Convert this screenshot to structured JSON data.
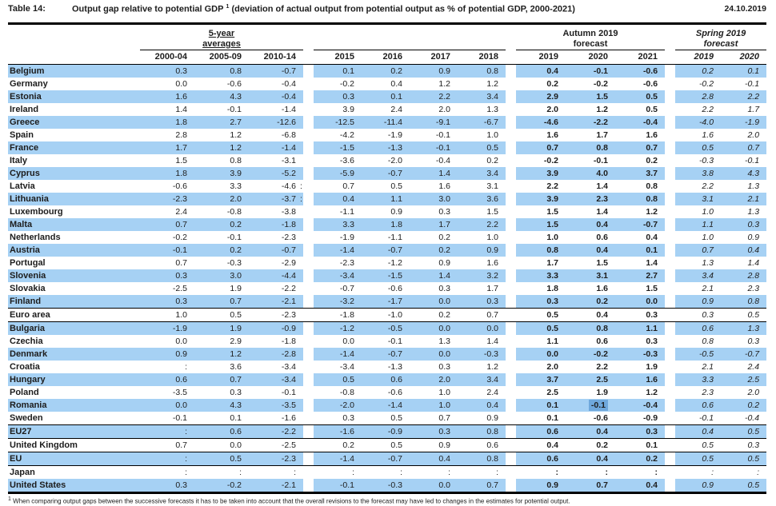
{
  "header": {
    "table_label": "Table 14:",
    "title_main": "Output gap relative to potential GDP",
    "title_superscript": "1",
    "title_paren": "(deviation of actual output from potential output as % of potential GDP, 2000-2021)",
    "date": "24.10.2019"
  },
  "table": {
    "groups": {
      "averages": {
        "line1": "5-year",
        "line2": "averages",
        "cols": [
          "2000-04",
          "2005-09",
          "2010-14"
        ]
      },
      "history": {
        "cols": [
          "2015",
          "2016",
          "2017",
          "2018"
        ]
      },
      "autumn": {
        "line1": "Autumn 2019",
        "line2": "forecast",
        "cols": [
          "2019",
          "2020",
          "2021"
        ]
      },
      "spring": {
        "line1": "Spring 2019",
        "line2": "forecast",
        "cols": [
          "2019",
          "2020"
        ]
      }
    },
    "colors": {
      "row_stripe": "#a6d1f4",
      "selection_highlight": "#6fa8dc",
      "border": "#000000"
    },
    "rows": [
      {
        "country": "Belgium",
        "values": [
          "0.3",
          "0.8",
          "-0.7",
          "0.1",
          "0.2",
          "0.9",
          "0.8",
          "0.4",
          "-0.1",
          "-0.6",
          "0.2",
          "0.1"
        ]
      },
      {
        "country": "Germany",
        "values": [
          "0.0",
          "-0.6",
          "-0.4",
          "-0.2",
          "0.4",
          "1.2",
          "1.2",
          "0.2",
          "-0.2",
          "-0.6",
          "-0.2",
          "-0.1"
        ]
      },
      {
        "country": "Estonia",
        "values": [
          "1.6",
          "4.3",
          "-0.4",
          "0.3",
          "0.1",
          "2.2",
          "3.4",
          "2.9",
          "1.5",
          "0.5",
          "2.8",
          "2.2"
        ]
      },
      {
        "country": "Ireland",
        "values": [
          "1.4",
          "-0.1",
          "-1.4",
          "3.9",
          "2.4",
          "2.0",
          "1.3",
          "2.0",
          "1.2",
          "0.5",
          "2.2",
          "1.7"
        ]
      },
      {
        "country": "Greece",
        "values": [
          "1.8",
          "2.7",
          "-12.6",
          "-12.5",
          "-11.4",
          "-9.1",
          "-6.7",
          "-4.6",
          "-2.2",
          "-0.4",
          "-4.0",
          "-1.9"
        ]
      },
      {
        "country": "Spain",
        "values": [
          "2.8",
          "1.2",
          "-6.8",
          "-4.2",
          "-1.9",
          "-0.1",
          "1.0",
          "1.6",
          "1.7",
          "1.6",
          "1.6",
          "2.0"
        ]
      },
      {
        "country": "France",
        "values": [
          "1.7",
          "1.2",
          "-1.4",
          "-1.5",
          "-1.3",
          "-0.1",
          "0.5",
          "0.7",
          "0.8",
          "0.7",
          "0.5",
          "0.7"
        ]
      },
      {
        "country": "Italy",
        "values": [
          "1.5",
          "0.8",
          "-3.1",
          "-3.6",
          "-2.0",
          "-0.4",
          "0.2",
          "-0.2",
          "-0.1",
          "0.2",
          "-0.3",
          "-0.1"
        ]
      },
      {
        "country": "Cyprus",
        "values": [
          "1.8",
          "3.9",
          "-5.2",
          "-5.9",
          "-0.7",
          "1.4",
          "3.4",
          "3.9",
          "4.0",
          "3.7",
          "3.8",
          "4.3"
        ]
      },
      {
        "country": "Latvia",
        "values": [
          "-0.6",
          "3.3",
          "-4.6",
          "0.7",
          "0.5",
          "1.6",
          "3.1",
          "2.2",
          "1.4",
          "0.8",
          "2.2",
          "1.3"
        ],
        "gap_marker": ":"
      },
      {
        "country": "Lithuania",
        "values": [
          "-2.3",
          "2.0",
          "-3.7",
          "0.4",
          "1.1",
          "3.0",
          "3.6",
          "3.9",
          "2.3",
          "0.8",
          "3.1",
          "2.1"
        ],
        "gap_marker": ":"
      },
      {
        "country": "Luxembourg",
        "values": [
          "2.4",
          "-0.8",
          "-3.8",
          "-1.1",
          "0.9",
          "0.3",
          "1.5",
          "1.5",
          "1.4",
          "1.2",
          "1.0",
          "1.3"
        ]
      },
      {
        "country": "Malta",
        "values": [
          "0.7",
          "0.2",
          "-1.8",
          "3.3",
          "1.8",
          "1.7",
          "2.2",
          "1.5",
          "0.4",
          "-0.7",
          "1.1",
          "0.3"
        ]
      },
      {
        "country": "Netherlands",
        "values": [
          "-0.2",
          "-0.1",
          "-2.3",
          "-1.9",
          "-1.1",
          "0.2",
          "1.0",
          "1.0",
          "0.6",
          "0.4",
          "1.0",
          "0.9"
        ]
      },
      {
        "country": "Austria",
        "values": [
          "-0.1",
          "0.2",
          "-0.7",
          "-1.4",
          "-0.7",
          "0.2",
          "0.9",
          "0.8",
          "0.4",
          "0.1",
          "0.7",
          "0.4"
        ]
      },
      {
        "country": "Portugal",
        "values": [
          "0.7",
          "-0.3",
          "-2.9",
          "-2.3",
          "-1.2",
          "0.9",
          "1.6",
          "1.7",
          "1.5",
          "1.4",
          "1.3",
          "1.4"
        ]
      },
      {
        "country": "Slovenia",
        "values": [
          "0.3",
          "3.0",
          "-4.4",
          "-3.4",
          "-1.5",
          "1.4",
          "3.2",
          "3.3",
          "3.1",
          "2.7",
          "3.4",
          "2.8"
        ]
      },
      {
        "country": "Slovakia",
        "values": [
          "-2.5",
          "1.9",
          "-2.2",
          "-0.7",
          "-0.6",
          "0.3",
          "1.7",
          "1.8",
          "1.6",
          "1.5",
          "2.1",
          "2.3"
        ]
      },
      {
        "country": "Finland",
        "values": [
          "0.3",
          "0.7",
          "-2.1",
          "-3.2",
          "-1.7",
          "0.0",
          "0.3",
          "0.3",
          "0.2",
          "0.0",
          "0.9",
          "0.8"
        ],
        "separator_below": true
      },
      {
        "country": "Euro area",
        "values": [
          "1.0",
          "0.5",
          "-2.3",
          "-1.8",
          "-1.0",
          "0.2",
          "0.7",
          "0.5",
          "0.4",
          "0.3",
          "0.3",
          "0.5"
        ],
        "separator_below": true
      },
      {
        "country": "Bulgaria",
        "values": [
          "-1.9",
          "1.9",
          "-0.9",
          "-1.2",
          "-0.5",
          "0.0",
          "0.0",
          "0.5",
          "0.8",
          "1.1",
          "0.6",
          "1.3"
        ]
      },
      {
        "country": "Czechia",
        "values": [
          "0.0",
          "2.9",
          "-1.8",
          "0.0",
          "-0.1",
          "1.3",
          "1.4",
          "1.1",
          "0.6",
          "0.3",
          "0.8",
          "0.3"
        ]
      },
      {
        "country": "Denmark",
        "values": [
          "0.9",
          "1.2",
          "-2.8",
          "-1.4",
          "-0.7",
          "0.0",
          "-0.3",
          "0.0",
          "-0.2",
          "-0.3",
          "-0.5",
          "-0.7"
        ]
      },
      {
        "country": "Croatia",
        "values": [
          ":",
          "3.6",
          "-3.4",
          "-3.4",
          "-1.3",
          "0.3",
          "1.2",
          "2.0",
          "2.2",
          "1.9",
          "2.1",
          "2.4"
        ]
      },
      {
        "country": "Hungary",
        "values": [
          "0.6",
          "0.7",
          "-3.4",
          "0.5",
          "0.6",
          "2.0",
          "3.4",
          "3.7",
          "2.5",
          "1.6",
          "3.3",
          "2.5"
        ]
      },
      {
        "country": "Poland",
        "values": [
          "-3.5",
          "0.3",
          "-0.1",
          "-0.8",
          "-0.6",
          "1.0",
          "2.4",
          "2.5",
          "1.9",
          "1.2",
          "2.3",
          "2.0"
        ]
      },
      {
        "country": "Romania",
        "values": [
          "0.0",
          "4.3",
          "-3.5",
          "-2.0",
          "-1.4",
          "1.0",
          "0.4",
          "0.1",
          "-0.1",
          "-0.4",
          "0.6",
          "0.2"
        ],
        "highlight_index": 8
      },
      {
        "country": "Sweden",
        "values": [
          "-0.1",
          "0.1",
          "-1.6",
          "0.3",
          "0.5",
          "0.7",
          "0.9",
          "0.1",
          "-0.6",
          "-0.9",
          "-0.1",
          "-0.4"
        ],
        "separator_below": true
      },
      {
        "country": "EU27",
        "values": [
          ":",
          "0.6",
          "-2.2",
          "-1.6",
          "-0.9",
          "0.3",
          "0.8",
          "0.6",
          "0.4",
          "0.3",
          "0.4",
          "0.5"
        ],
        "separator_below": true
      },
      {
        "country": "United Kingdom",
        "values": [
          "0.7",
          "0.0",
          "-2.5",
          "0.2",
          "0.5",
          "0.9",
          "0.6",
          "0.4",
          "0.2",
          "0.1",
          "0.5",
          "0.3"
        ],
        "separator_below": true
      },
      {
        "country": "EU",
        "values": [
          ":",
          "0.5",
          "-2.3",
          "-1.4",
          "-0.7",
          "0.4",
          "0.8",
          "0.6",
          "0.4",
          "0.2",
          "0.5",
          "0.5"
        ],
        "separator_below": true
      },
      {
        "country": "Japan",
        "values": [
          ":",
          ":",
          ":",
          ":",
          ":",
          ":",
          ":",
          ":",
          ":",
          ":",
          ":",
          ":"
        ]
      },
      {
        "country": "United States",
        "values": [
          "0.3",
          "-0.2",
          "-2.1",
          "-0.1",
          "-0.3",
          "0.0",
          "0.7",
          "0.9",
          "0.7",
          "0.4",
          "0.9",
          "0.5"
        ]
      }
    ]
  },
  "footnote": {
    "superscript": "1",
    "text": "When comparing output gaps between the successive forecasts it has to be taken into account that the overall revisions to the forecast may have led to changes in the estimates for potential output."
  }
}
